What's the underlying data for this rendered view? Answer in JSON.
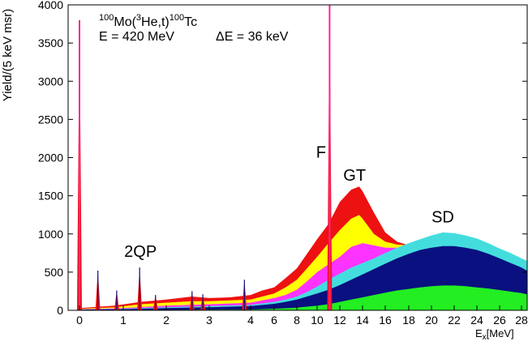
{
  "chart_data": {
    "type": "area",
    "reaction": {
      "mass": "100",
      "target": "Mo",
      "mass_he": "3",
      "projectile_rest": "He,t)",
      "mass_product": "100",
      "product": "Tc",
      "open": "("
    },
    "beam_energy": "E = 420 MeV",
    "resolution": "ΔE = 36 keV",
    "ylabel": "Yield/(5 keV msr)",
    "xlabel_main": "E",
    "xlabel_sub": "x",
    "xlabel_unit": "[MeV]",
    "ylim": [
      0,
      4000
    ],
    "y_ticks": [
      {
        "v": 0,
        "label": "0"
      },
      {
        "v": 500,
        "label": "500"
      },
      {
        "v": 1000,
        "label": "1000"
      },
      {
        "v": 1500,
        "label": "1500"
      },
      {
        "v": 2000,
        "label": "2000"
      },
      {
        "v": 2500,
        "label": "2500"
      },
      {
        "v": 3000,
        "label": "3000"
      },
      {
        "v": 3500,
        "label": "3500"
      },
      {
        "v": 4000,
        "label": "4000"
      }
    ],
    "x_ticks": [
      {
        "v": 0,
        "label": "0"
      },
      {
        "v": 1,
        "label": "1"
      },
      {
        "v": 2,
        "label": "2"
      },
      {
        "v": 3,
        "label": "3"
      },
      {
        "v": 4,
        "label": "4"
      },
      {
        "v": 6,
        "label": "6"
      },
      {
        "v": 8,
        "label": "8"
      },
      {
        "v": 10,
        "label": "10"
      },
      {
        "v": 12,
        "label": "12"
      },
      {
        "v": 14,
        "label": "14"
      },
      {
        "v": 16,
        "label": "16"
      },
      {
        "v": 18,
        "label": "18"
      },
      {
        "v": 20,
        "label": "20"
      },
      {
        "v": 22,
        "label": "22"
      },
      {
        "v": 24,
        "label": "24"
      },
      {
        "v": 26,
        "label": "26"
      },
      {
        "v": 28,
        "label": "28"
      }
    ],
    "colors": {
      "total": "#ee1111",
      "yellow": "#ffff00",
      "magenta": "#ff33ff",
      "cyan": "#44dddd",
      "navy": "#0a1080",
      "green": "#22ee22",
      "peak": "#ff2299"
    },
    "layers": [
      {
        "color_key": "total",
        "points": [
          [
            0,
            30
          ],
          [
            0.8,
            60
          ],
          [
            1.4,
            110
          ],
          [
            2,
            140
          ],
          [
            2.6,
            180
          ],
          [
            3,
            160
          ],
          [
            3.5,
            170
          ],
          [
            4,
            200
          ],
          [
            5,
            260
          ],
          [
            6,
            300
          ],
          [
            7,
            420
          ],
          [
            8,
            550
          ],
          [
            9,
            740
          ],
          [
            10,
            930
          ],
          [
            11,
            1130
          ],
          [
            12,
            1420
          ],
          [
            13,
            1580
          ],
          [
            13.7,
            1620
          ],
          [
            14,
            1560
          ],
          [
            15,
            1280
          ],
          [
            16,
            1020
          ],
          [
            17,
            900
          ],
          [
            18,
            850
          ],
          [
            19,
            900
          ],
          [
            20,
            960
          ],
          [
            21,
            1000
          ],
          [
            22,
            1000
          ],
          [
            23,
            970
          ],
          [
            24,
            930
          ],
          [
            25,
            870
          ],
          [
            26,
            800
          ],
          [
            27,
            740
          ],
          [
            28,
            670
          ],
          [
            28.5,
            640
          ]
        ]
      },
      {
        "color_key": "yellow",
        "points": [
          [
            0,
            20
          ],
          [
            0.8,
            40
          ],
          [
            1.4,
            80
          ],
          [
            2,
            100
          ],
          [
            2.6,
            120
          ],
          [
            3,
            120
          ],
          [
            4,
            140
          ],
          [
            5,
            180
          ],
          [
            6,
            220
          ],
          [
            7,
            300
          ],
          [
            8,
            400
          ],
          [
            9,
            550
          ],
          [
            10,
            700
          ],
          [
            11,
            880
          ],
          [
            12,
            1050
          ],
          [
            13,
            1200
          ],
          [
            13.7,
            1250
          ],
          [
            14,
            1200
          ],
          [
            15,
            1000
          ],
          [
            16,
            900
          ],
          [
            17,
            860
          ],
          [
            18,
            850
          ],
          [
            19,
            900
          ],
          [
            20,
            960
          ],
          [
            21,
            1000
          ],
          [
            22,
            1000
          ],
          [
            23,
            970
          ],
          [
            24,
            930
          ],
          [
            25,
            870
          ],
          [
            26,
            800
          ],
          [
            27,
            740
          ],
          [
            28,
            670
          ],
          [
            28.5,
            640
          ]
        ]
      },
      {
        "color_key": "magenta",
        "points": [
          [
            0,
            15
          ],
          [
            1,
            30
          ],
          [
            2,
            60
          ],
          [
            3,
            80
          ],
          [
            4,
            100
          ],
          [
            5,
            130
          ],
          [
            6,
            160
          ],
          [
            7,
            200
          ],
          [
            8,
            270
          ],
          [
            9,
            380
          ],
          [
            10,
            500
          ],
          [
            11,
            600
          ],
          [
            12,
            700
          ],
          [
            13,
            830
          ],
          [
            14,
            880
          ],
          [
            15,
            850
          ],
          [
            16,
            820
          ],
          [
            17,
            820
          ],
          [
            18,
            840
          ],
          [
            19,
            890
          ],
          [
            20,
            950
          ],
          [
            21,
            1000
          ],
          [
            22,
            1000
          ],
          [
            23,
            970
          ],
          [
            24,
            930
          ],
          [
            25,
            870
          ],
          [
            26,
            800
          ],
          [
            27,
            740
          ],
          [
            28,
            670
          ],
          [
            28.5,
            640
          ]
        ]
      },
      {
        "color_key": "cyan",
        "points": [
          [
            0,
            10
          ],
          [
            1,
            20
          ],
          [
            2,
            40
          ],
          [
            3,
            55
          ],
          [
            4,
            70
          ],
          [
            5,
            90
          ],
          [
            6,
            110
          ],
          [
            7,
            140
          ],
          [
            8,
            180
          ],
          [
            9,
            240
          ],
          [
            10,
            310
          ],
          [
            11,
            400
          ],
          [
            12,
            480
          ],
          [
            13,
            560
          ],
          [
            14,
            620
          ],
          [
            15,
            680
          ],
          [
            16,
            750
          ],
          [
            17,
            820
          ],
          [
            18,
            880
          ],
          [
            19,
            930
          ],
          [
            20,
            980
          ],
          [
            21,
            1020
          ],
          [
            22,
            1010
          ],
          [
            23,
            980
          ],
          [
            24,
            940
          ],
          [
            25,
            880
          ],
          [
            26,
            810
          ],
          [
            27,
            750
          ],
          [
            28,
            680
          ],
          [
            28.5,
            650
          ]
        ]
      },
      {
        "color_key": "navy",
        "points": [
          [
            0,
            8
          ],
          [
            1,
            15
          ],
          [
            2,
            30
          ],
          [
            3,
            40
          ],
          [
            4,
            55
          ],
          [
            5,
            70
          ],
          [
            6,
            85
          ],
          [
            7,
            110
          ],
          [
            8,
            140
          ],
          [
            9,
            180
          ],
          [
            10,
            220
          ],
          [
            11,
            270
          ],
          [
            12,
            330
          ],
          [
            13,
            400
          ],
          [
            14,
            470
          ],
          [
            15,
            540
          ],
          [
            16,
            610
          ],
          [
            17,
            680
          ],
          [
            18,
            740
          ],
          [
            19,
            790
          ],
          [
            20,
            820
          ],
          [
            21,
            840
          ],
          [
            22,
            840
          ],
          [
            23,
            820
          ],
          [
            24,
            790
          ],
          [
            25,
            740
          ],
          [
            26,
            680
          ],
          [
            27,
            620
          ],
          [
            28,
            560
          ],
          [
            28.5,
            520
          ]
        ]
      },
      {
        "color_key": "green",
        "points": [
          [
            0,
            0
          ],
          [
            2,
            5
          ],
          [
            4,
            10
          ],
          [
            6,
            20
          ],
          [
            8,
            35
          ],
          [
            10,
            60
          ],
          [
            11,
            80
          ],
          [
            12,
            110
          ],
          [
            13,
            140
          ],
          [
            14,
            170
          ],
          [
            15,
            200
          ],
          [
            16,
            230
          ],
          [
            17,
            260
          ],
          [
            18,
            280
          ],
          [
            19,
            300
          ],
          [
            20,
            315
          ],
          [
            21,
            325
          ],
          [
            22,
            325
          ],
          [
            23,
            315
          ],
          [
            24,
            300
          ],
          [
            25,
            285
          ],
          [
            26,
            265
          ],
          [
            27,
            245
          ],
          [
            28,
            225
          ],
          [
            28.5,
            210
          ]
        ]
      }
    ],
    "peaks": [
      {
        "x": 0,
        "y": 3800
      },
      {
        "x": 0.42,
        "y": 520
      },
      {
        "x": 0.85,
        "y": 260
      },
      {
        "x": 1.38,
        "y": 560
      },
      {
        "x": 1.75,
        "y": 200
      },
      {
        "x": 2.6,
        "y": 250
      },
      {
        "x": 2.85,
        "y": 210
      },
      {
        "x": 3.85,
        "y": 400
      },
      {
        "x": 11.1,
        "y": 4000
      }
    ],
    "annotations": [
      {
        "text": "2QP",
        "x": 1.4,
        "y": 700
      },
      {
        "text": "F",
        "x": 10.35,
        "y": 2000
      },
      {
        "text": "GT",
        "x": 13.3,
        "y": 1700
      },
      {
        "text": "SD",
        "x": 21.0,
        "y": 1150
      }
    ]
  }
}
